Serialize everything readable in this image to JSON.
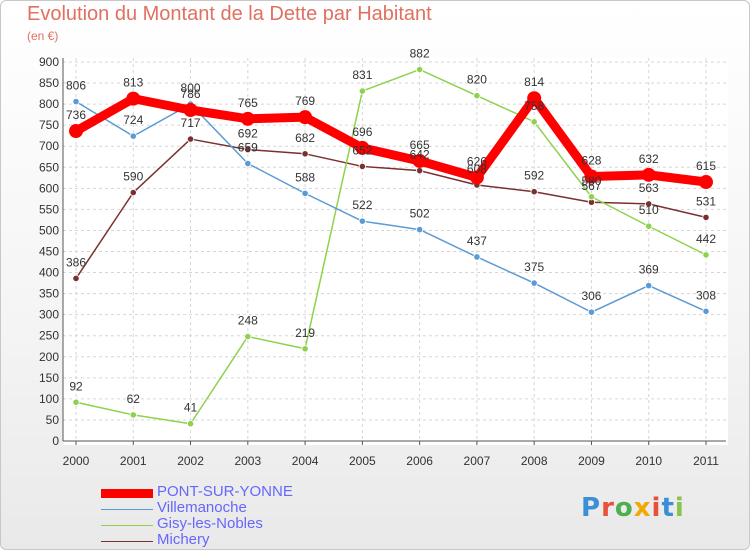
{
  "header": {
    "title": "Evolution du Montant de la Dette par Habitant",
    "subtitle": "(en €)"
  },
  "logo": {
    "text": "Proxiti",
    "colors": [
      "#3a8fd6",
      "#e8503a",
      "#4caf50",
      "#f2a900",
      "#e8503a",
      "#3a8fd6",
      "#8bc34a"
    ]
  },
  "chart_data": {
    "type": "line",
    "title": "Evolution du Montant de la Dette par Habitant",
    "subtitle": "(en €)",
    "xlabel": "",
    "ylabel": "",
    "x": [
      "2000",
      "2001",
      "2002",
      "2003",
      "2004",
      "2005",
      "2006",
      "2007",
      "2008",
      "2009",
      "2010",
      "2011"
    ],
    "ylim": [
      0,
      900
    ],
    "yticks": [
      0,
      50,
      100,
      150,
      200,
      250,
      300,
      350,
      400,
      450,
      500,
      550,
      600,
      650,
      700,
      750,
      800,
      850,
      900
    ],
    "grid": true,
    "legend_position": "bottom-left",
    "series": [
      {
        "name": "PONT-SUR-YONNE",
        "color": "#ff0000",
        "values": [
          736,
          813,
          786,
          765,
          769,
          696,
          665,
          626,
          814,
          628,
          632,
          615
        ]
      },
      {
        "name": "Villemanoche",
        "color": "#5b9bd5",
        "values": [
          806,
          724,
          800,
          659,
          588,
          522,
          502,
          437,
          375,
          306,
          369,
          308
        ]
      },
      {
        "name": "Gisy-les-Nobles",
        "color": "#8fd14f",
        "values": [
          92,
          62,
          41,
          248,
          219,
          831,
          882,
          820,
          758,
          580,
          510,
          442
        ]
      },
      {
        "name": "Michery",
        "color": "#7b3030",
        "values": [
          386,
          590,
          717,
          692,
          682,
          652,
          642,
          608,
          592,
          567,
          563,
          531
        ]
      }
    ]
  }
}
